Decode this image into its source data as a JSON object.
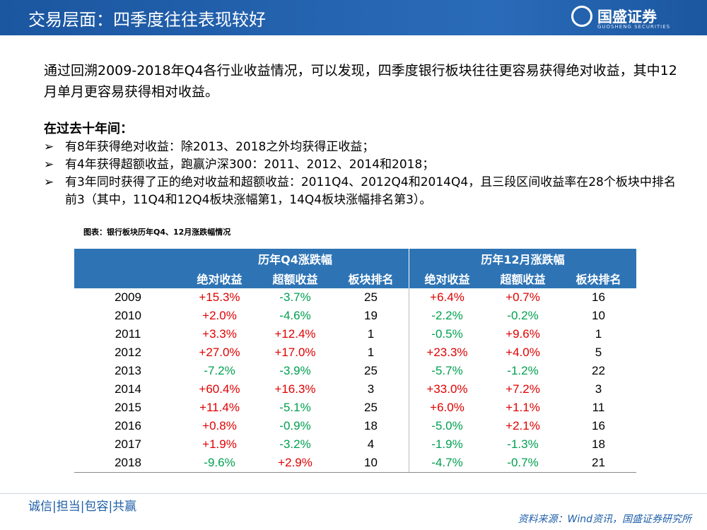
{
  "header": {
    "title": "交易层面：四季度往往表现较好",
    "logo": "国盛证券",
    "logo_sub": "GUOSHENG SECURITIES"
  },
  "intro": "通过回溯2009-2018年Q4各行业收益情况，可以发现，四季度银行板块往往更容易获得绝对收益，其中12月单月更容易获得相对收益。",
  "section_title": "在过去十年间：",
  "bullets": [
    "有8年获得绝对收益：除2013、2018之外均获得正收益；",
    "有4年获得超额收益，跑赢沪深300：2011、2012、2014和2018；",
    "有3年同时获得了正的绝对收益和超额收益：2011Q4、2012Q4和2014Q4，且三段区间收益率在28个板块中排名前3（其中，11Q4和12Q4板块涨幅第1，14Q4板块涨幅排名第3）。"
  ],
  "table": {
    "caption": "图表：银行板块历年Q4、12月涨跌幅情况",
    "groups": [
      "历年Q4涨跌幅",
      "历年12月涨跌幅"
    ],
    "columns": [
      "绝对收益",
      "超额收益",
      "板块排名",
      "绝对收益",
      "超额收益",
      "板块排名"
    ],
    "rows": [
      [
        "2009",
        "+15.3%",
        "-3.7%",
        "25",
        "+6.4%",
        "+0.7%",
        "16"
      ],
      [
        "2010",
        "+2.0%",
        "-4.6%",
        "19",
        "-2.2%",
        "-0.2%",
        "10"
      ],
      [
        "2011",
        "+3.3%",
        "+12.4%",
        "1",
        "-0.5%",
        "+9.6%",
        "1"
      ],
      [
        "2012",
        "+27.0%",
        "+17.0%",
        "1",
        "+23.3%",
        "+4.0%",
        "5"
      ],
      [
        "2013",
        "-7.2%",
        "-3.9%",
        "25",
        "-5.7%",
        "-1.2%",
        "22"
      ],
      [
        "2014",
        "+60.4%",
        "+16.3%",
        "3",
        "+33.0%",
        "+7.2%",
        "3"
      ],
      [
        "2015",
        "+11.4%",
        "-5.1%",
        "25",
        "+6.0%",
        "+1.1%",
        "11"
      ],
      [
        "2016",
        "+0.8%",
        "-0.9%",
        "18",
        "-5.0%",
        "+2.1%",
        "16"
      ],
      [
        "2017",
        "+1.9%",
        "-3.2%",
        "4",
        "-1.9%",
        "-1.3%",
        "18"
      ],
      [
        "2018",
        "-9.6%",
        "+2.9%",
        "10",
        "-4.7%",
        "-0.7%",
        "21"
      ]
    ]
  },
  "footer": {
    "motto": "诚信|担当|包容|共赢",
    "source": "资料来源：Wind资讯，国盛证券研究所"
  }
}
